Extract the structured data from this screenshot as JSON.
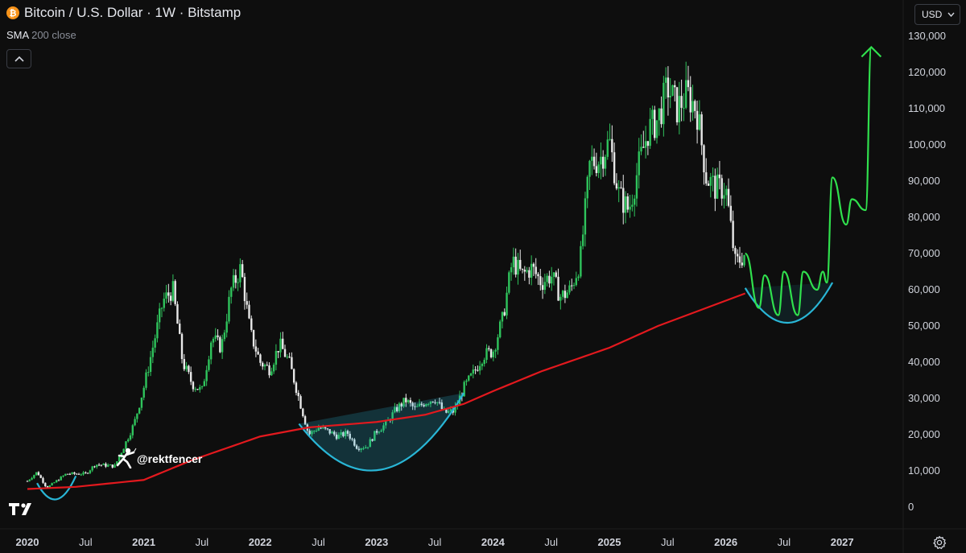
{
  "header": {
    "title": "Bitcoin / U.S. Dollar · 1W · Bitstamp",
    "indicator_name": "SMA",
    "indicator_params": "200 close",
    "currency": "USD"
  },
  "watermark": "@rektfencer",
  "icons": {
    "logo": "bitcoin-logo",
    "collapse": "chevron-up-icon",
    "currency_dropdown": "chevron-down-icon",
    "settings": "gear-icon",
    "brand": "tradingview-logo",
    "fencer": "fencer-figure"
  },
  "colors": {
    "up": "#2fc45c",
    "down": "#e8e8e8",
    "sma": "#e3191e",
    "cup": "#29b6d6",
    "projection": "#30e04d",
    "background": "#0e0e0e"
  },
  "chart_data": {
    "type": "candlestick",
    "title": "Bitcoin / U.S. Dollar · 1W · Bitstamp",
    "timeframe": "1W",
    "x_range": [
      "2020-01",
      "2027-05"
    ],
    "x_ticks": [
      "2020",
      "Jul",
      "2021",
      "Jul",
      "2022",
      "Jul",
      "2023",
      "Jul",
      "2024",
      "Jul",
      "2025",
      "Jul",
      "2026",
      "Jul",
      "2027"
    ],
    "y_ticks": [
      0,
      10000,
      20000,
      30000,
      40000,
      50000,
      60000,
      70000,
      80000,
      90000,
      100000,
      110000,
      120000,
      130000
    ],
    "y_tick_labels": [
      "0",
      "10,000",
      "20,000",
      "30,000",
      "40,000",
      "50,000",
      "60,000",
      "70,000",
      "80,000",
      "90,000",
      "100,000",
      "110,000",
      "120,000",
      "130,000"
    ],
    "ylim": [
      -3000,
      135000
    ],
    "price_anchors": [
      [
        "2020-01",
        7200
      ],
      [
        "2020-02",
        9700
      ],
      [
        "2020-03",
        5300
      ],
      [
        "2020-05",
        9200
      ],
      [
        "2020-07",
        9200
      ],
      [
        "2020-08",
        11800
      ],
      [
        "2020-10",
        11300
      ],
      [
        "2020-11",
        17000
      ],
      [
        "2020-12",
        23000
      ],
      [
        "2021-01",
        33000
      ],
      [
        "2021-02",
        45000
      ],
      [
        "2021-03",
        57000
      ],
      [
        "2021-04",
        60000
      ],
      [
        "2021-05",
        40000
      ],
      [
        "2021-06",
        34000
      ],
      [
        "2021-07",
        32000
      ],
      [
        "2021-08",
        47000
      ],
      [
        "2021-09",
        44000
      ],
      [
        "2021-10",
        60000
      ],
      [
        "2021-11",
        66000
      ],
      [
        "2021-12",
        48000
      ],
      [
        "2022-01",
        40000
      ],
      [
        "2022-02",
        38000
      ],
      [
        "2022-03",
        45000
      ],
      [
        "2022-04",
        40000
      ],
      [
        "2022-05",
        30000
      ],
      [
        "2022-06",
        20000
      ],
      [
        "2022-07",
        22000
      ],
      [
        "2022-08",
        21000
      ],
      [
        "2022-09",
        19500
      ],
      [
        "2022-10",
        20500
      ],
      [
        "2022-11",
        16500
      ],
      [
        "2022-12",
        16700
      ],
      [
        "2023-01",
        21000
      ],
      [
        "2023-02",
        23000
      ],
      [
        "2023-03",
        27000
      ],
      [
        "2023-04",
        29500
      ],
      [
        "2023-05",
        27000
      ],
      [
        "2023-06",
        29000
      ],
      [
        "2023-07",
        30000
      ],
      [
        "2023-08",
        26000
      ],
      [
        "2023-09",
        26500
      ],
      [
        "2023-10",
        33000
      ],
      [
        "2023-11",
        37000
      ],
      [
        "2023-12",
        42000
      ],
      [
        "2024-01",
        43000
      ],
      [
        "2024-02",
        52000
      ],
      [
        "2024-03",
        68000
      ],
      [
        "2024-04",
        64000
      ],
      [
        "2024-05",
        66000
      ],
      [
        "2024-06",
        62000
      ],
      [
        "2024-07",
        64000
      ],
      [
        "2024-08",
        58000
      ],
      [
        "2024-09",
        60000
      ],
      [
        "2024-10",
        68000
      ],
      [
        "2024-11",
        95000
      ],
      [
        "2024-12",
        96000
      ],
      [
        "2025-01",
        101000
      ],
      [
        "2025-02",
        86000
      ],
      [
        "2025-03",
        82000
      ],
      [
        "2025-04",
        94000
      ],
      [
        "2025-05",
        104000
      ],
      [
        "2025-06",
        107000
      ],
      [
        "2025-07",
        116000
      ],
      [
        "2025-08",
        110000
      ],
      [
        "2025-09",
        114000
      ],
      [
        "2025-10",
        110000
      ],
      [
        "2025-11",
        91000
      ],
      [
        "2025-12",
        88000
      ],
      [
        "2026-01",
        88000
      ],
      [
        "2026-02",
        67000
      ],
      [
        "2026-03",
        70000
      ]
    ],
    "sma_200": [
      [
        "2020-01",
        5000
      ],
      [
        "2020-06",
        5600
      ],
      [
        "2021-01",
        7500
      ],
      [
        "2021-06",
        13000
      ],
      [
        "2022-01",
        19500
      ],
      [
        "2022-06",
        22000
      ],
      [
        "2023-01",
        23500
      ],
      [
        "2023-06",
        25500
      ],
      [
        "2023-10",
        28500
      ],
      [
        "2024-01",
        32000
      ],
      [
        "2024-06",
        37500
      ],
      [
        "2025-01",
        44000
      ],
      [
        "2025-06",
        50000
      ],
      [
        "2026-01",
        57000
      ],
      [
        "2026-03",
        59000
      ]
    ],
    "annotations": {
      "cup_2020": {
        "from": "2020-02",
        "to": "2020-06",
        "low": 2500
      },
      "cup_2022_2023": {
        "from": "2022-05",
        "to": "2023-10",
        "low": 12000
      },
      "cup_2026": {
        "from": "2026-03",
        "to": "2026-12",
        "low": 51000
      },
      "projection_path": [
        [
          "2026-03",
          70000
        ],
        [
          "2026-04",
          55000
        ],
        [
          "2026-05",
          64000
        ],
        [
          "2026-06",
          53000
        ],
        [
          "2026-07",
          65000
        ],
        [
          "2026-08",
          53000
        ],
        [
          "2026-09",
          65000
        ],
        [
          "2026-10",
          60000
        ],
        [
          "2026-11",
          65000
        ],
        [
          "2026-11",
          62000
        ],
        [
          "2026-12",
          91000
        ],
        [
          "2027-01",
          78000
        ],
        [
          "2027-02",
          85000
        ],
        [
          "2027-03",
          82000
        ],
        [
          "2027-04",
          127000
        ]
      ]
    }
  }
}
